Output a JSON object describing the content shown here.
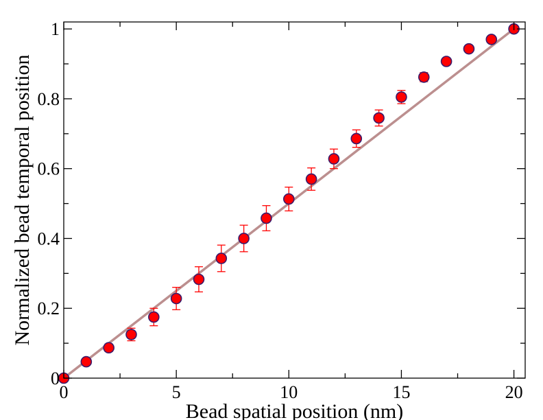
{
  "chart_data": {
    "type": "scatter",
    "xlabel": "Bead spatial position (nm)",
    "ylabel": "Normalized bead temporal position",
    "xlim": [
      0,
      20.5
    ],
    "ylim": [
      0,
      1.02
    ],
    "xticks": [
      0,
      5,
      10,
      15,
      20
    ],
    "xtick_labels": [
      "0",
      "5",
      "10",
      "15",
      "20"
    ],
    "yticks": [
      0,
      0.2,
      0.4,
      0.6,
      0.8,
      1
    ],
    "ytick_labels": [
      "0",
      "0.2",
      "0.4",
      "0.6",
      "0.8",
      "1"
    ],
    "x_minor_step": 2.5,
    "y_minor_step": 0.1,
    "grid": false,
    "legend": "none",
    "series": [
      {
        "type": "scatter",
        "marker": "circle",
        "marker_fill": "#ff0000",
        "marker_edge": "#3a1a6a",
        "errorbar_color": "#ff0000",
        "x": [
          0,
          1,
          2,
          3,
          4,
          5,
          6,
          7,
          8,
          9,
          10,
          11,
          12,
          13,
          14,
          15,
          16,
          17,
          18,
          19,
          20
        ],
        "y": [
          0.0,
          0.047,
          0.087,
          0.125,
          0.175,
          0.228,
          0.283,
          0.343,
          0.4,
          0.458,
          0.513,
          0.57,
          0.628,
          0.686,
          0.745,
          0.805,
          0.862,
          0.907,
          0.943,
          0.97,
          1.0
        ],
        "yerr": [
          0.0,
          0.006,
          0.011,
          0.018,
          0.025,
          0.032,
          0.036,
          0.038,
          0.038,
          0.036,
          0.034,
          0.032,
          0.028,
          0.025,
          0.023,
          0.019,
          0.013,
          0.007,
          0.004,
          0.003,
          0.0
        ]
      },
      {
        "type": "line",
        "color": "#bc8f8f",
        "x": [
          0,
          20
        ],
        "y": [
          0,
          1
        ]
      }
    ]
  }
}
